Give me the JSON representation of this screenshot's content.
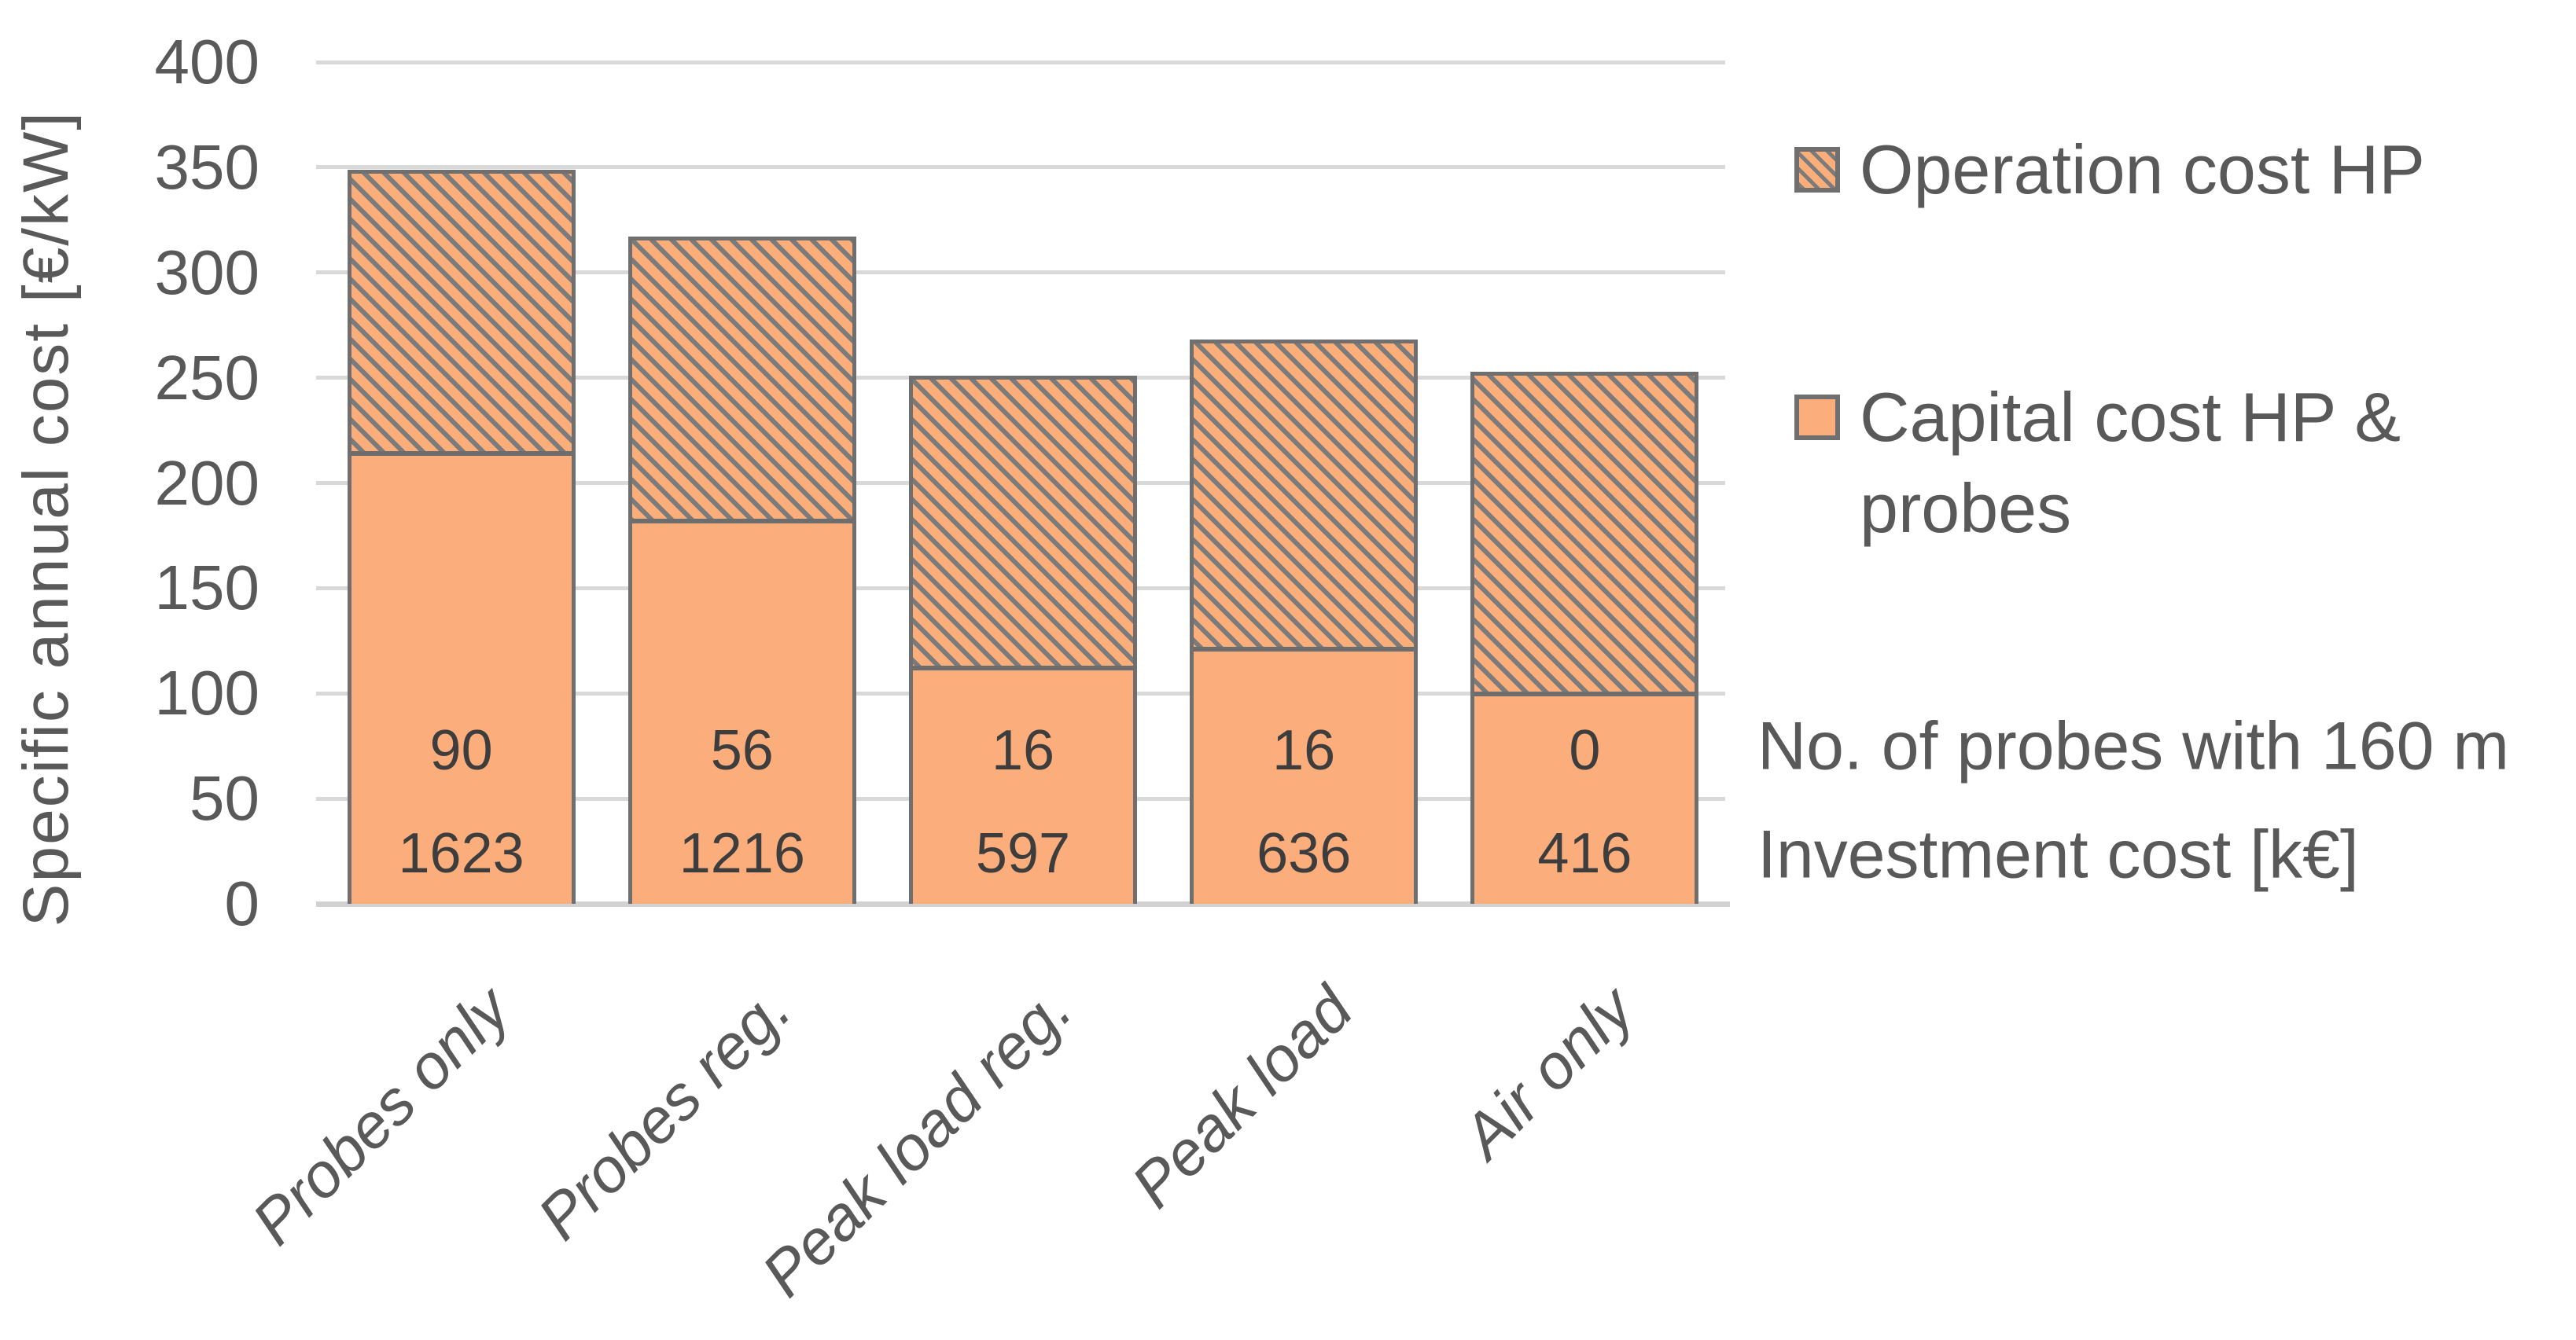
{
  "y_axis": {
    "title": "Specific annual cost [€/kW]",
    "tick_labels": [
      "0",
      "50",
      "100",
      "150",
      "200",
      "250",
      "300",
      "350",
      "400"
    ]
  },
  "chart_data": {
    "type": "bar",
    "stacked": true,
    "title": "",
    "xlabel": "",
    "ylabel": "Specific annual cost [€/kW]",
    "ylim": [
      0,
      400
    ],
    "ytick_step": 50,
    "grid": true,
    "legend_position": "right",
    "categories": [
      "Probes only",
      "Probes reg.",
      "Peak load reg.",
      "Peak load",
      "Air only"
    ],
    "series": [
      {
        "name": "Capital cost HP & probes",
        "pattern": "solid",
        "values": [
          215,
          183,
          113,
          122,
          101
        ]
      },
      {
        "name": "Operation cost HP",
        "pattern": "hatched",
        "values": [
          134,
          134,
          138,
          146,
          152
        ]
      }
    ],
    "stack_totals": [
      349,
      317,
      251,
      268,
      253
    ],
    "bar_annotations": {
      "probes_count": [
        "90",
        "56",
        "16",
        "16",
        "0"
      ],
      "investment_cost_keur": [
        "1623",
        "1216",
        "597",
        "636",
        "416"
      ]
    }
  },
  "legend": {
    "items": [
      {
        "label": "Operation cost HP",
        "swatch": "hatched"
      },
      {
        "label": "Capital cost HP & probes",
        "swatch": "solid"
      }
    ]
  },
  "annotations": {
    "probes_note": "No. of probes with 160 m",
    "investment_note": "Investment cost [k€]"
  },
  "colors": {
    "bar_fill": "#fbae7c",
    "hatch_line": "#7b7b7b",
    "bar_border": "#6f6f6f",
    "segment_divider": "#6d6d6d",
    "gridline": "#d9d9d9",
    "axis_text": "#595959",
    "bar_label_text": "#3d3d3d"
  }
}
